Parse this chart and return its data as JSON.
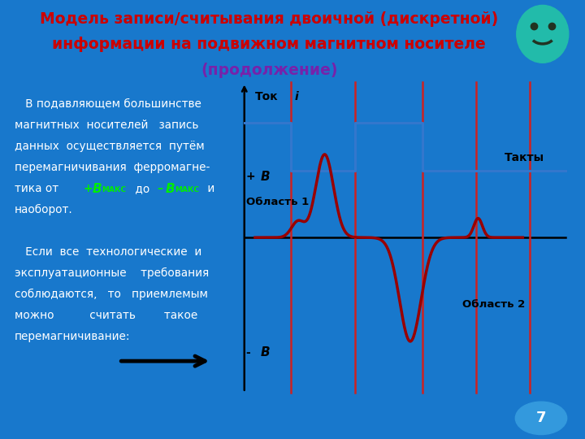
{
  "title_line1": "Модель записи/считывания двоичной (дискретной)",
  "title_line2": "информации на подвижном магнитном носителе",
  "title_line3": "(продолжение)",
  "title_color": "#cc0000",
  "title_bg": "#aae8f8",
  "slide_bg": "#1878cc",
  "body_text_color": "#ffffff",
  "green_color": "#00ee00",
  "chart_bg": "#ffffff",
  "page_number": "7",
  "step_color": "#3377cc",
  "wave_color": "#990000",
  "axis_color": "#000000",
  "vline_color": "#cc2222",
  "purple_color": "#7722aa"
}
